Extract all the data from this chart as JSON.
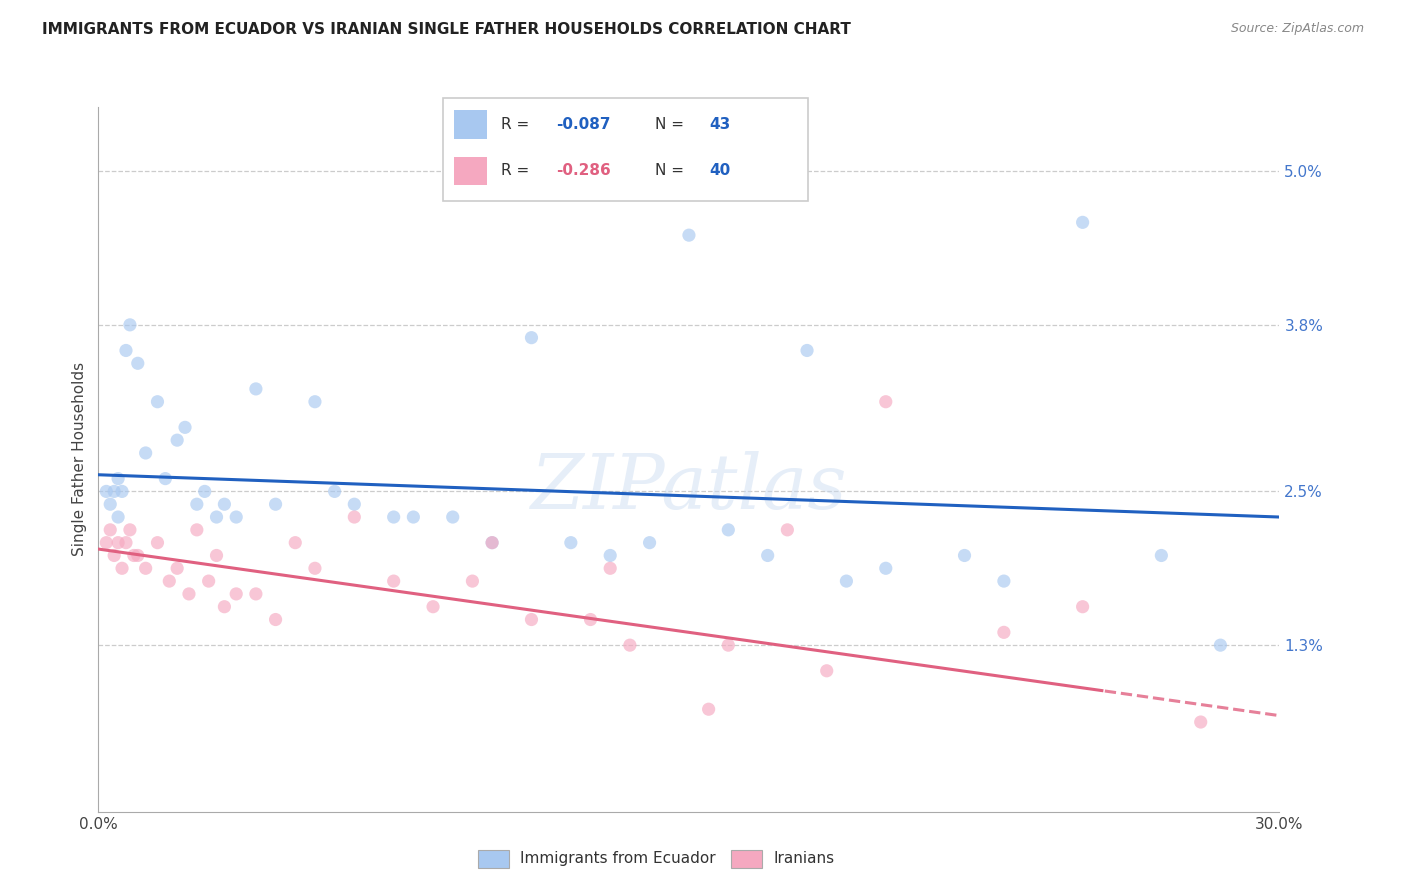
{
  "title": "IMMIGRANTS FROM ECUADOR VS IRANIAN SINGLE FATHER HOUSEHOLDS CORRELATION CHART",
  "source": "Source: ZipAtlas.com",
  "ylabel": "Single Father Households",
  "xlim": [
    0.0,
    30.0
  ],
  "ylim": [
    0.0,
    5.5
  ],
  "xticks": [
    0.0,
    5.0,
    10.0,
    15.0,
    20.0,
    25.0,
    30.0
  ],
  "ytick_vals": [
    1.3,
    2.5,
    3.8,
    5.0
  ],
  "ytick_labels": [
    "1.3%",
    "2.5%",
    "3.8%",
    "5.0%"
  ],
  "blue_color": "#a8c8f0",
  "pink_color": "#f5a8c0",
  "blue_line_color": "#2060c0",
  "pink_line_color": "#e06080",
  "legend_entries": [
    {
      "label": "Immigrants from Ecuador",
      "R": "-0.087",
      "N": "43"
    },
    {
      "label": "Iranians",
      "R": "-0.286",
      "N": "40"
    }
  ],
  "blue_scatter_x": [
    0.2,
    0.3,
    0.4,
    0.5,
    0.5,
    0.6,
    0.7,
    0.8,
    1.0,
    1.2,
    1.5,
    1.7,
    2.0,
    2.2,
    2.5,
    2.7,
    3.0,
    3.2,
    3.5,
    4.0,
    4.5,
    5.5,
    6.0,
    6.5,
    7.5,
    8.0,
    9.0,
    10.0,
    11.0,
    12.0,
    13.0,
    14.0,
    15.0,
    17.0,
    18.0,
    20.0,
    22.0,
    25.0,
    27.0,
    28.5,
    16.0,
    19.0,
    23.0
  ],
  "blue_scatter_y": [
    2.5,
    2.4,
    2.5,
    2.6,
    2.3,
    2.5,
    3.6,
    3.8,
    3.5,
    2.8,
    3.2,
    2.6,
    2.9,
    3.0,
    2.4,
    2.5,
    2.3,
    2.4,
    2.3,
    3.3,
    2.4,
    3.2,
    2.5,
    2.4,
    2.3,
    2.3,
    2.3,
    2.1,
    3.7,
    2.1,
    2.0,
    2.1,
    4.5,
    2.0,
    3.6,
    1.9,
    2.0,
    4.6,
    2.0,
    1.3,
    2.2,
    1.8,
    1.8
  ],
  "pink_scatter_x": [
    0.2,
    0.3,
    0.4,
    0.5,
    0.6,
    0.7,
    0.8,
    0.9,
    1.0,
    1.2,
    1.5,
    1.8,
    2.0,
    2.3,
    2.5,
    2.8,
    3.0,
    3.2,
    3.5,
    4.0,
    4.5,
    5.0,
    5.5,
    6.5,
    7.5,
    8.5,
    9.5,
    11.0,
    13.0,
    15.5,
    17.5,
    20.0,
    23.0,
    25.0,
    28.0,
    13.5,
    16.0,
    10.0,
    12.5,
    18.5
  ],
  "pink_scatter_y": [
    2.1,
    2.2,
    2.0,
    2.1,
    1.9,
    2.1,
    2.2,
    2.0,
    2.0,
    1.9,
    2.1,
    1.8,
    1.9,
    1.7,
    2.2,
    1.8,
    2.0,
    1.6,
    1.7,
    1.7,
    1.5,
    2.1,
    1.9,
    2.3,
    1.8,
    1.6,
    1.8,
    1.5,
    1.9,
    0.8,
    2.2,
    3.2,
    1.4,
    1.6,
    0.7,
    1.3,
    1.3,
    2.1,
    1.5,
    1.1
  ],
  "pink_solid_x_max": 25.5,
  "watermark": "ZIPatlas",
  "scatter_size": 90,
  "scatter_alpha": 0.65
}
